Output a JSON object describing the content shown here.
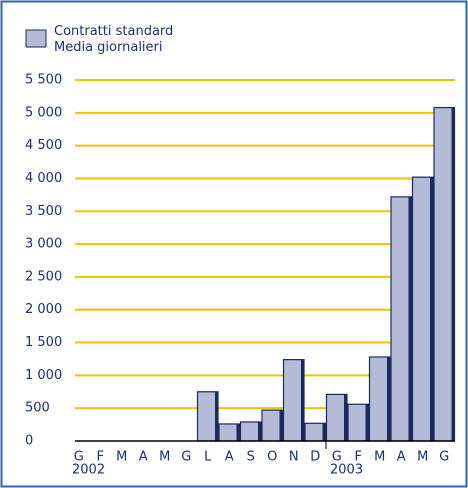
{
  "chart_data": {
    "type": "bar",
    "categories": [
      "G",
      "F",
      "M",
      "A",
      "M",
      "G",
      "L",
      "A",
      "S",
      "O",
      "N",
      "D",
      "G",
      "F",
      "M",
      "A",
      "M",
      "G"
    ],
    "category_groups": [
      "2002",
      null,
      null,
      null,
      null,
      null,
      null,
      null,
      null,
      null,
      null,
      null,
      "2003",
      null,
      null,
      null,
      null,
      null
    ],
    "series": [
      {
        "name": "Contratti standard Media giornalieri",
        "color": "#b3bbd6",
        "values": [
          null,
          null,
          null,
          null,
          null,
          null,
          750,
          260,
          290,
          470,
          1240,
          270,
          710,
          560,
          1280,
          3720,
          4020,
          5080
        ]
      }
    ],
    "ylim": [
      0,
      5500
    ],
    "yticks": [
      0,
      500,
      {
        "value": 1000,
        "label": "1 000"
      },
      {
        "value": 1500,
        "label": "1 500"
      },
      {
        "value": 2000,
        "label": "2 000"
      },
      {
        "value": 2500,
        "label": "2 500"
      },
      {
        "value": 3000,
        "label": "3 000"
      },
      {
        "value": 3500,
        "label": "3 500"
      },
      {
        "value": 4000,
        "label": "4 000"
      },
      {
        "value": 4500,
        "label": "4 500"
      },
      {
        "value": 5000,
        "label": "5 000"
      },
      {
        "value": 5500,
        "label": "5 500"
      }
    ],
    "grid": true,
    "grid_color": "#f2c200",
    "legend": "top-left"
  }
}
